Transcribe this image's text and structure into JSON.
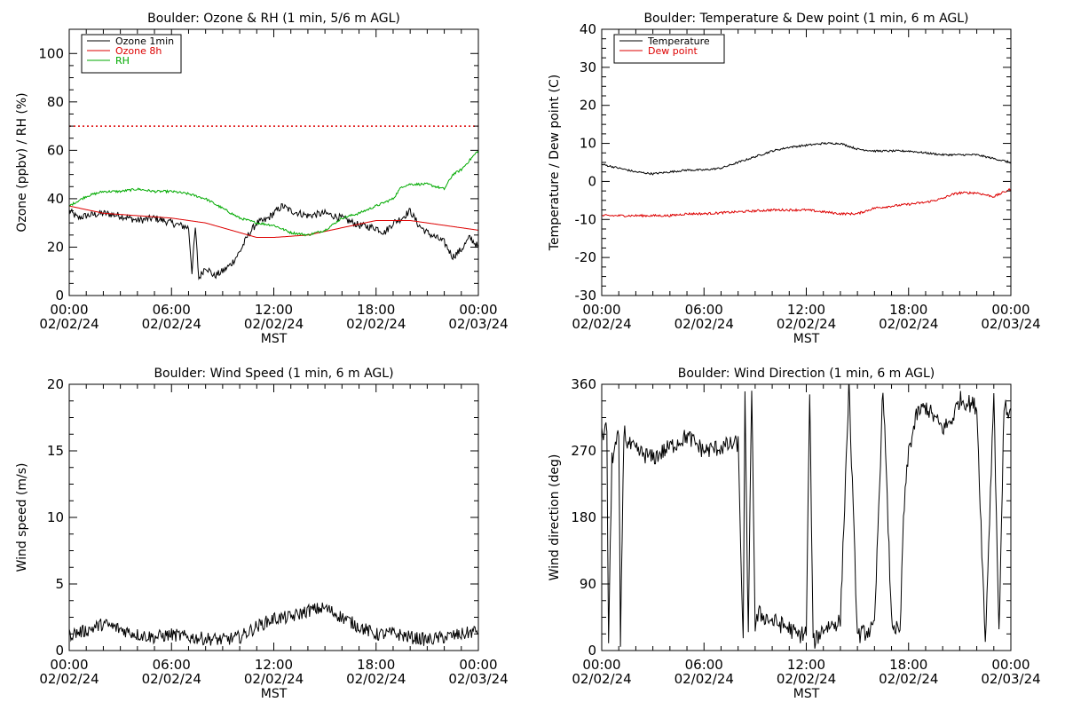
{
  "chart_data": [
    {
      "type": "line",
      "title": "Boulder: Ozone & RH (1 min, 5/6 m AGL)",
      "ylabel": "Ozone (ppbv) / RH (%)",
      "xlabel": "MST",
      "ylim": [
        0,
        110
      ],
      "yticks": [
        0,
        20,
        40,
        60,
        80,
        100
      ],
      "xlim": [
        0,
        24
      ],
      "xticks": [
        {
          "time": "00:00",
          "date": "02/02/24"
        },
        {
          "time": "06:00",
          "date": "02/02/24"
        },
        {
          "time": "12:00",
          "date": "02/02/24"
        },
        {
          "time": "18:00",
          "date": "02/02/24"
        },
        {
          "time": "00:00",
          "date": "02/03/24"
        }
      ],
      "legend_position": "top-left",
      "hline": {
        "y": 70,
        "color": "#dd0000",
        "style": "dotted"
      },
      "series": [
        {
          "name": "Ozone 1min",
          "color": "#000000",
          "noise": 1.5,
          "x": [
            0,
            0.5,
            1,
            2,
            3,
            4,
            5,
            6,
            6.5,
            7,
            7.2,
            7.4,
            7.6,
            8,
            8.5,
            9,
            9.5,
            10,
            10.5,
            11,
            11.5,
            12,
            12.5,
            13,
            14,
            15,
            16,
            17,
            18,
            18.5,
            19,
            19.5,
            20,
            20.5,
            21,
            21.5,
            22,
            22.5,
            23,
            23.5,
            24
          ],
          "y": [
            35,
            32,
            33,
            34,
            33,
            31,
            32,
            30,
            29,
            28,
            10,
            28,
            7,
            12,
            8,
            10,
            13,
            18,
            25,
            30,
            31,
            34,
            37,
            35,
            33,
            34,
            32,
            29,
            28,
            26,
            30,
            32,
            35,
            29,
            26,
            24,
            22,
            16,
            19,
            24,
            20
          ]
        },
        {
          "name": "Ozone 8h",
          "color": "#dd0000",
          "noise": 0,
          "x": [
            0,
            2,
            4,
            6,
            8,
            10,
            11,
            12,
            14,
            16,
            18,
            19,
            20,
            22,
            24
          ],
          "y": [
            37,
            34,
            33,
            32,
            30,
            26,
            24,
            24,
            25,
            28,
            31,
            31,
            31,
            29,
            27
          ]
        },
        {
          "name": "RH",
          "color": "#00aa00",
          "noise": 0.5,
          "x": [
            0,
            0.5,
            1,
            1.5,
            2,
            3,
            4,
            5,
            6,
            7,
            8,
            9,
            10,
            10.5,
            11,
            12,
            13,
            14,
            15,
            16,
            17,
            18,
            19,
            19.5,
            20,
            21,
            22,
            22.5,
            23,
            23.5,
            24
          ],
          "y": [
            37,
            39,
            41,
            42,
            43,
            43,
            44,
            43,
            43,
            42,
            40,
            36,
            32,
            31,
            30,
            29,
            26,
            25,
            27,
            32,
            34,
            37,
            40,
            45,
            46,
            46,
            44,
            50,
            52,
            56,
            60
          ]
        }
      ]
    },
    {
      "type": "line",
      "title": "Boulder: Temperature & Dew point (1 min, 6 m AGL)",
      "ylabel": "Temperature / Dew point (C)",
      "xlabel": "MST",
      "ylim": [
        -30,
        40
      ],
      "yticks": [
        -30,
        -20,
        -10,
        0,
        10,
        20,
        30,
        40
      ],
      "xlim": [
        0,
        24
      ],
      "xticks": [
        {
          "time": "00:00",
          "date": "02/02/24"
        },
        {
          "time": "06:00",
          "date": "02/02/24"
        },
        {
          "time": "12:00",
          "date": "02/02/24"
        },
        {
          "time": "18:00",
          "date": "02/02/24"
        },
        {
          "time": "00:00",
          "date": "02/03/24"
        }
      ],
      "legend_position": "top-left",
      "series": [
        {
          "name": "Temperature",
          "color": "#000000",
          "noise": 0.25,
          "x": [
            0,
            1,
            2,
            3,
            4,
            5,
            6,
            7,
            8,
            9,
            10,
            11,
            12,
            13,
            14,
            15,
            16,
            17,
            18,
            19,
            20,
            21,
            22,
            23,
            24
          ],
          "y": [
            4.5,
            3.5,
            2.5,
            2,
            2.5,
            3,
            3,
            3.5,
            5,
            6.5,
            8,
            9,
            9.5,
            10,
            10,
            8.5,
            8,
            8,
            8,
            7.5,
            7,
            7,
            7,
            6,
            5
          ]
        },
        {
          "name": "Dew point",
          "color": "#dd0000",
          "noise": 0.3,
          "x": [
            0,
            2,
            4,
            5,
            6,
            8,
            10,
            12,
            13,
            14,
            15,
            16,
            17,
            18,
            19,
            20,
            20.5,
            21,
            22,
            23,
            24
          ],
          "y": [
            -9,
            -9,
            -9,
            -8.5,
            -8.5,
            -8,
            -7.5,
            -7.5,
            -8,
            -8.5,
            -8.5,
            -7,
            -6.5,
            -6,
            -5.5,
            -4.5,
            -3.5,
            -3,
            -3,
            -4,
            -2
          ]
        }
      ]
    },
    {
      "type": "line",
      "title": "Boulder: Wind Speed (1 min, 6 m AGL)",
      "ylabel": "Wind speed (m/s)",
      "xlabel": "MST",
      "ylim": [
        0,
        20
      ],
      "yticks": [
        0,
        5,
        10,
        15,
        20
      ],
      "xlim": [
        0,
        24
      ],
      "xticks": [
        {
          "time": "00:00",
          "date": "02/02/24"
        },
        {
          "time": "06:00",
          "date": "02/02/24"
        },
        {
          "time": "12:00",
          "date": "02/02/24"
        },
        {
          "time": "18:00",
          "date": "02/02/24"
        },
        {
          "time": "00:00",
          "date": "02/03/24"
        }
      ],
      "series": [
        {
          "name": "",
          "color": "#000000",
          "noise": 0.5,
          "x": [
            0,
            1,
            2,
            3,
            4,
            5,
            6,
            7,
            8,
            9,
            10,
            11,
            12,
            13,
            14,
            15,
            16,
            17,
            18,
            19,
            20,
            21,
            22,
            23,
            24
          ],
          "y": [
            1.2,
            1.5,
            2,
            1.6,
            1.2,
            1,
            1.2,
            1,
            0.9,
            0.8,
            1,
            1.8,
            2.4,
            2.5,
            3,
            3.2,
            2.5,
            1.8,
            1.2,
            1.3,
            1,
            0.8,
            1,
            1.2,
            1.5
          ]
        }
      ]
    },
    {
      "type": "line",
      "title": "Boulder: Wind Direction (1 min, 6 m AGL)",
      "ylabel": "Wind direction (deg)",
      "xlabel": "MST",
      "ylim": [
        0,
        360
      ],
      "yticks": [
        0,
        90,
        180,
        270,
        360
      ],
      "xlim": [
        0,
        24
      ],
      "xticks": [
        {
          "time": "00:00",
          "date": "02/02/24"
        },
        {
          "time": "06:00",
          "date": "02/02/24"
        },
        {
          "time": "12:00",
          "date": "02/02/24"
        },
        {
          "time": "18:00",
          "date": "02/02/24"
        },
        {
          "time": "00:00",
          "date": "02/03/24"
        }
      ],
      "series": [
        {
          "name": "",
          "color": "#000000",
          "noise": 12,
          "x": [
            0,
            0.3,
            0.4,
            0.6,
            1,
            1.1,
            1.3,
            1.5,
            2,
            3,
            4,
            5,
            6,
            7,
            8,
            8.3,
            8.4,
            8.6,
            8.8,
            9,
            9.2,
            10,
            11,
            11.5,
            12,
            12.2,
            12.4,
            13,
            14,
            14.5,
            15,
            16,
            16.5,
            17,
            17.5,
            17.7,
            18,
            18.5,
            19,
            20,
            20.5,
            21,
            22,
            22.5,
            23,
            23.3,
            23.6,
            24
          ],
          "y": [
            290,
            300,
            10,
            260,
            290,
            10,
            300,
            280,
            270,
            260,
            275,
            290,
            270,
            275,
            280,
            10,
            340,
            20,
            360,
            30,
            50,
            40,
            30,
            20,
            25,
            350,
            10,
            30,
            40,
            360,
            20,
            30,
            360,
            40,
            20,
            180,
            270,
            320,
            330,
            300,
            310,
            340,
            330,
            10,
            350,
            20,
            330,
            320
          ]
        }
      ]
    }
  ]
}
